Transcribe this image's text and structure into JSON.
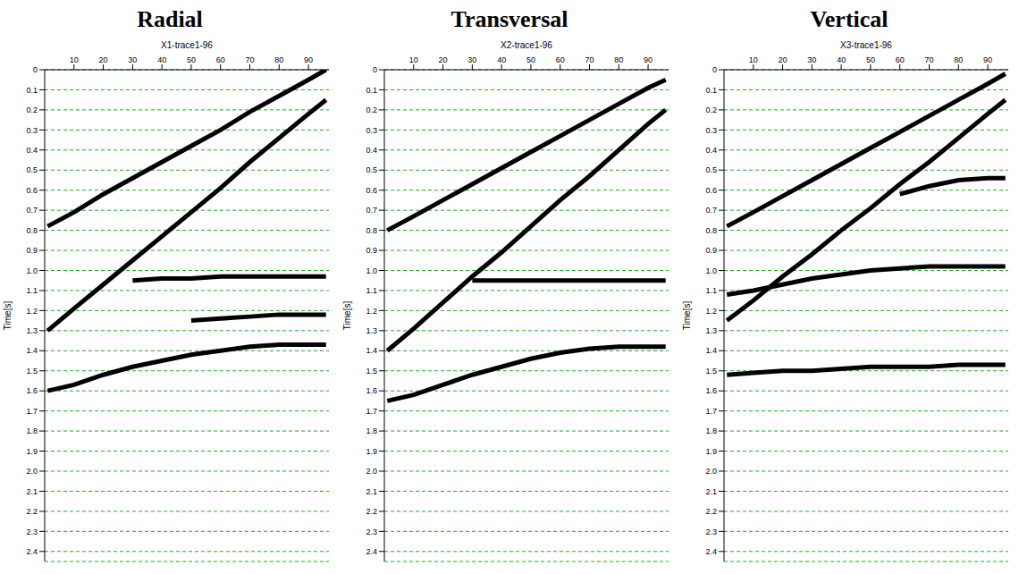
{
  "chart_data": [
    {
      "type": "line",
      "title": "Radial",
      "subtitle": "X1-trace1-96",
      "y_label": "Time[s]",
      "grid": true,
      "x": [
        1,
        10,
        20,
        30,
        40,
        50,
        60,
        70,
        80,
        90,
        96
      ],
      "xlim": [
        0,
        97
      ],
      "xticks": [
        10,
        20,
        30,
        40,
        50,
        60,
        70,
        80,
        90
      ],
      "ylim": [
        0,
        2.45
      ],
      "yticks": [
        0,
        0.1,
        0.2,
        0.3,
        0.4,
        0.5,
        0.6,
        0.7,
        0.8,
        0.9,
        {
          "value": 1,
          "label": "1.0"
        },
        1.1,
        1.2,
        1.3,
        1.4,
        1.5,
        1.6,
        1.7,
        1.8,
        1.9,
        {
          "value": 2,
          "label": "2.0"
        },
        2.1,
        2.2,
        2.3,
        2.4
      ],
      "series": [
        {
          "color": "#000000",
          "values": [
            0.78,
            0.71,
            0.62,
            0.54,
            0.46,
            0.38,
            0.3,
            0.21,
            0.13,
            0.05,
            0.0
          ]
        },
        {
          "color": "#000000",
          "values": [
            1.3,
            1.19,
            1.07,
            0.95,
            0.83,
            0.71,
            0.59,
            0.46,
            0.34,
            0.22,
            0.15
          ]
        },
        {
          "color": "#000000",
          "values": [
            null,
            null,
            null,
            1.05,
            1.04,
            1.04,
            1.03,
            1.03,
            1.03,
            1.03,
            1.03
          ]
        },
        {
          "color": "#000000",
          "values": [
            null,
            null,
            null,
            null,
            null,
            1.25,
            1.24,
            1.23,
            1.22,
            1.22,
            1.22
          ]
        },
        {
          "color": "#000000",
          "values": [
            1.6,
            1.57,
            1.52,
            1.48,
            1.45,
            1.42,
            1.4,
            1.38,
            1.37,
            1.37,
            1.37
          ]
        }
      ]
    },
    {
      "type": "line",
      "title": "Transversal",
      "subtitle": "X2-trace1-96",
      "y_label": "Time[s]",
      "grid": true,
      "x": [
        1,
        10,
        20,
        30,
        40,
        50,
        60,
        70,
        80,
        90,
        96
      ],
      "xlim": [
        0,
        97
      ],
      "xticks": [
        10,
        20,
        30,
        40,
        50,
        60,
        70,
        80,
        90
      ],
      "ylim": [
        0,
        2.45
      ],
      "yticks": [
        0,
        0.1,
        0.2,
        0.3,
        0.4,
        0.5,
        0.6,
        0.7,
        0.8,
        0.9,
        {
          "value": 1,
          "label": "1.0"
        },
        1.1,
        1.2,
        1.3,
        1.4,
        1.5,
        1.6,
        1.7,
        1.8,
        1.9,
        {
          "value": 2,
          "label": "2.0"
        },
        2.1,
        2.2,
        2.3,
        2.4
      ],
      "series": [
        {
          "color": "#000000",
          "values": [
            0.8,
            0.73,
            0.65,
            0.57,
            0.49,
            0.41,
            0.33,
            0.25,
            0.17,
            0.09,
            0.05
          ]
        },
        {
          "color": "#000000",
          "values": [
            1.4,
            1.29,
            1.16,
            1.03,
            0.91,
            0.78,
            0.65,
            0.53,
            0.4,
            0.27,
            0.2
          ]
        },
        {
          "color": "#000000",
          "values": [
            null,
            null,
            null,
            1.05,
            1.05,
            1.05,
            1.05,
            1.05,
            1.05,
            1.05,
            1.05
          ]
        },
        {
          "color": "#000000",
          "values": [
            1.65,
            1.62,
            1.57,
            1.52,
            1.48,
            1.44,
            1.41,
            1.39,
            1.38,
            1.38,
            1.38
          ]
        }
      ]
    },
    {
      "type": "line",
      "title": "Vertical",
      "subtitle": "X3-trace1-96",
      "y_label": "Time[s]",
      "grid": true,
      "x": [
        1,
        10,
        20,
        30,
        40,
        50,
        60,
        70,
        80,
        90,
        96
      ],
      "xlim": [
        0,
        97
      ],
      "xticks": [
        10,
        20,
        30,
        40,
        50,
        60,
        70,
        80,
        90
      ],
      "ylim": [
        0,
        2.45
      ],
      "yticks": [
        0,
        0.1,
        0.2,
        0.3,
        0.4,
        0.5,
        0.6,
        0.7,
        0.8,
        0.9,
        {
          "value": 1,
          "label": "1.0"
        },
        1.1,
        1.2,
        1.3,
        1.4,
        1.5,
        1.6,
        1.7,
        1.8,
        1.9,
        {
          "value": 2,
          "label": "2.0"
        },
        2.1,
        2.2,
        2.3,
        2.4
      ],
      "series": [
        {
          "color": "#000000",
          "values": [
            0.78,
            0.71,
            0.63,
            0.55,
            0.47,
            0.39,
            0.31,
            0.23,
            0.15,
            0.07,
            0.02
          ]
        },
        {
          "color": "#000000",
          "values": [
            1.25,
            1.15,
            1.03,
            0.92,
            0.8,
            0.69,
            0.57,
            0.46,
            0.34,
            0.22,
            0.15
          ]
        },
        {
          "color": "#000000",
          "values": [
            null,
            null,
            null,
            null,
            null,
            null,
            0.62,
            0.58,
            0.55,
            0.54,
            0.54
          ]
        },
        {
          "color": "#000000",
          "values": [
            1.12,
            1.1,
            1.07,
            1.04,
            1.02,
            1.0,
            0.99,
            0.98,
            0.98,
            0.98,
            0.98
          ]
        },
        {
          "color": "#000000",
          "values": [
            1.52,
            1.51,
            1.5,
            1.5,
            1.49,
            1.48,
            1.48,
            1.48,
            1.47,
            1.47,
            1.47
          ]
        }
      ]
    }
  ]
}
